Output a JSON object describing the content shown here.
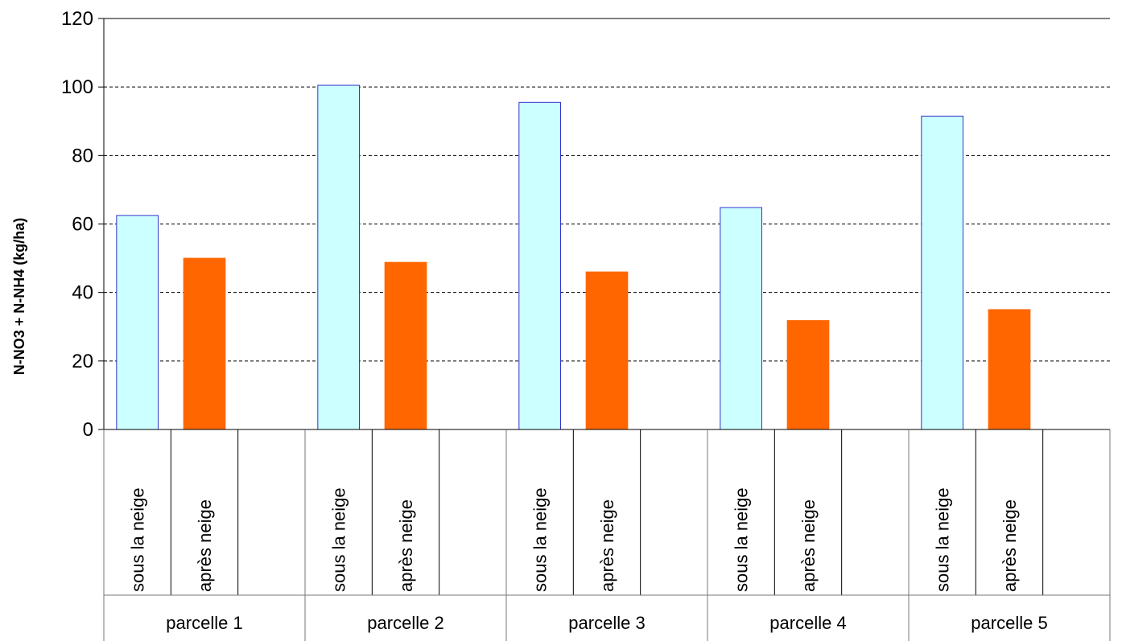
{
  "chart_data": {
    "type": "bar",
    "title": "",
    "ylabel": "N-NO3 + N-NH4 (kg/ha)",
    "xlabel": "",
    "ylim": [
      0,
      120
    ],
    "yticks": [
      0,
      20,
      40,
      60,
      80,
      100,
      120
    ],
    "grid": "horizontal-dashed",
    "groups": [
      "parcelle 1",
      "parcelle 2",
      "parcelle 3",
      "parcelle 4",
      "parcelle 5"
    ],
    "subcategories": [
      "sous la neige",
      "après neige",
      ""
    ],
    "series": [
      {
        "name": "sous la neige",
        "color": "#CCFFFF",
        "stroke": "#3333CC",
        "values": [
          62.5,
          100.5,
          95.5,
          64.8,
          91.5
        ]
      },
      {
        "name": "après neige",
        "color": "#FF6600",
        "stroke": "#FF6600",
        "values": [
          50,
          48.8,
          46,
          31.8,
          35
        ]
      }
    ]
  }
}
